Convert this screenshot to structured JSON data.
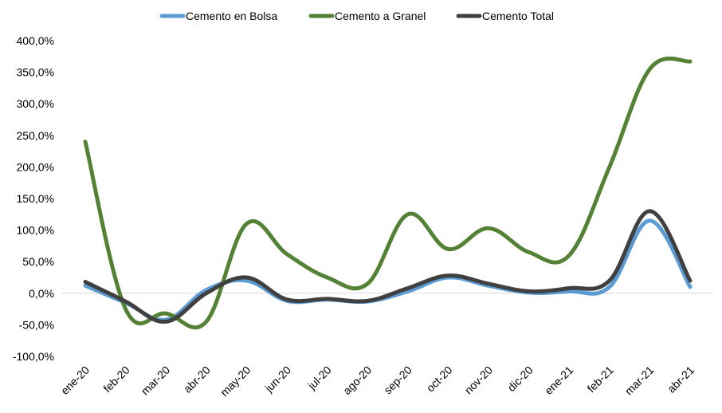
{
  "chart_data": {
    "type": "line",
    "categories": [
      "ene-20",
      "feb-20",
      "mar-20",
      "abr-20",
      "may-20",
      "jun-20",
      "jul-20",
      "ago-20",
      "sep-20",
      "oct-20",
      "nov-20",
      "dic-20",
      "ene-21",
      "feb-21",
      "mar-21",
      "abr-21"
    ],
    "series": [
      {
        "name": "Cemento en Bolsa",
        "color": "#5b9bd5",
        "values": [
          12,
          -15,
          -42,
          5,
          20,
          -12,
          -10,
          -13,
          3,
          25,
          12,
          1,
          3,
          10,
          115,
          10
        ]
      },
      {
        "name": "Cemento a Granel",
        "color": "#548235",
        "values": [
          240,
          -25,
          -32,
          -45,
          110,
          62,
          25,
          15,
          125,
          70,
          103,
          65,
          60,
          200,
          355,
          367
        ]
      },
      {
        "name": "Cemento Total",
        "color": "#404040",
        "values": [
          18,
          -13,
          -45,
          0,
          25,
          -10,
          -9,
          -12,
          8,
          28,
          15,
          3,
          8,
          20,
          130,
          20
        ]
      }
    ],
    "y_ticks": [
      "400,0%",
      "350,0%",
      "300,0%",
      "250,0%",
      "200,0%",
      "150,0%",
      "100,0%",
      "50,0%",
      "0,0%",
      "-50,0%",
      "-100,0%"
    ],
    "ylim": [
      -100,
      400
    ],
    "title": "",
    "xlabel": "",
    "ylabel": "",
    "legend_position": "top",
    "grid": false
  }
}
